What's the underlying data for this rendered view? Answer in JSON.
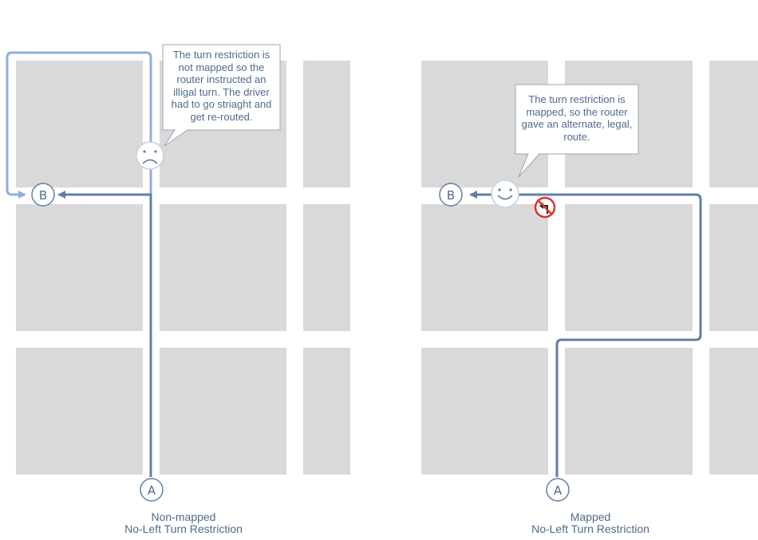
{
  "panels": [
    {
      "callout": "The turn restriction is not mapped so the router instructed an illigal turn. The driver had to go striaght and get re-routed.",
      "caption_line1": "Non-mapped",
      "caption_line2": "No-Left Turn Restriction",
      "start_marker": "A",
      "end_marker": "B",
      "emoji": "sad-face"
    },
    {
      "callout": "The turn restriction is mapped, so the router gave an alternate, legal, route.",
      "caption_line1": "Mapped",
      "caption_line2": "No-Left Turn Restriction",
      "start_marker": "A",
      "end_marker": "B",
      "emoji": "smiley-face"
    }
  ],
  "colors": {
    "block": "#d9d9d9",
    "route": "#5f7fa5",
    "failed_route": "#8eb0dd",
    "text": "#4f6a8f",
    "restriction": "#e0312a"
  }
}
